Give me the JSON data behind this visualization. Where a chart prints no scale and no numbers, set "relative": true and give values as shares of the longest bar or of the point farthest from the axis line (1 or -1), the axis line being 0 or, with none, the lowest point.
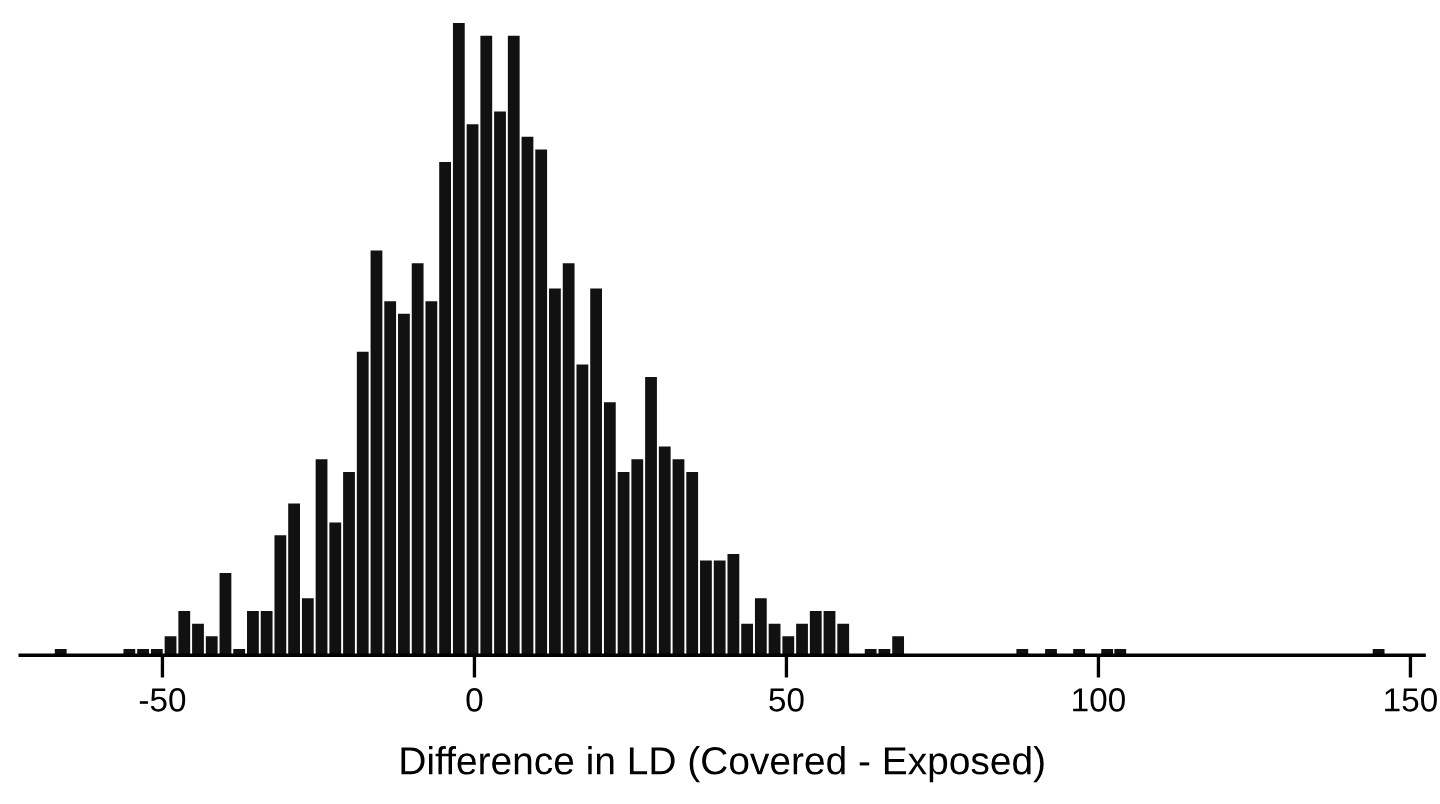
{
  "chart_data": {
    "type": "bar",
    "xlabel": "Difference in LD (Covered - Exposed)",
    "relative": true,
    "color": "#111111",
    "x": [
      -66.3,
      -55.3,
      -53.1,
      -50.9,
      -48.7,
      -46.5,
      -44.3,
      -42.1,
      -39.9,
      -37.7,
      -35.5,
      -33.3,
      -31.1,
      -28.9,
      -26.7,
      -24.5,
      -22.3,
      -20.1,
      -17.9,
      -15.7,
      -13.5,
      -11.3,
      -9.1,
      -6.9,
      -4.7,
      -2.5,
      -0.3,
      1.9,
      4.1,
      6.3,
      8.5,
      10.7,
      12.9,
      15.1,
      17.3,
      19.5,
      21.7,
      23.9,
      26.1,
      28.3,
      30.5,
      32.7,
      34.9,
      37.1,
      39.3,
      41.5,
      43.7,
      45.9,
      48.1,
      50.3,
      52.5,
      54.7,
      56.9,
      59.1,
      63.5,
      65.7,
      67.9,
      87.8,
      92.4,
      96.9,
      101.4,
      103.5,
      144.9
    ],
    "values": [
      0.01,
      0.01,
      0.01,
      0.01,
      0.03,
      0.07,
      0.05,
      0.03,
      0.13,
      0.01,
      0.07,
      0.07,
      0.19,
      0.24,
      0.09,
      0.31,
      0.21,
      0.29,
      0.48,
      0.64,
      0.56,
      0.54,
      0.62,
      0.56,
      0.78,
      1,
      0.84,
      0.98,
      0.86,
      0.98,
      0.82,
      0.8,
      0.58,
      0.62,
      0.46,
      0.58,
      0.4,
      0.29,
      0.31,
      0.44,
      0.33,
      0.31,
      0.29,
      0.15,
      0.15,
      0.16,
      0.05,
      0.09,
      0.05,
      0.03,
      0.05,
      0.07,
      0.07,
      0.05,
      0.01,
      0.01,
      0.03,
      0.01,
      0.01,
      0.01,
      0.01,
      0.01,
      0.01
    ],
    "xlim": [
      -72.8,
      152.2
    ],
    "xticks": [
      -50,
      0,
      50,
      100,
      150
    ],
    "tick_labels": "x"
  }
}
